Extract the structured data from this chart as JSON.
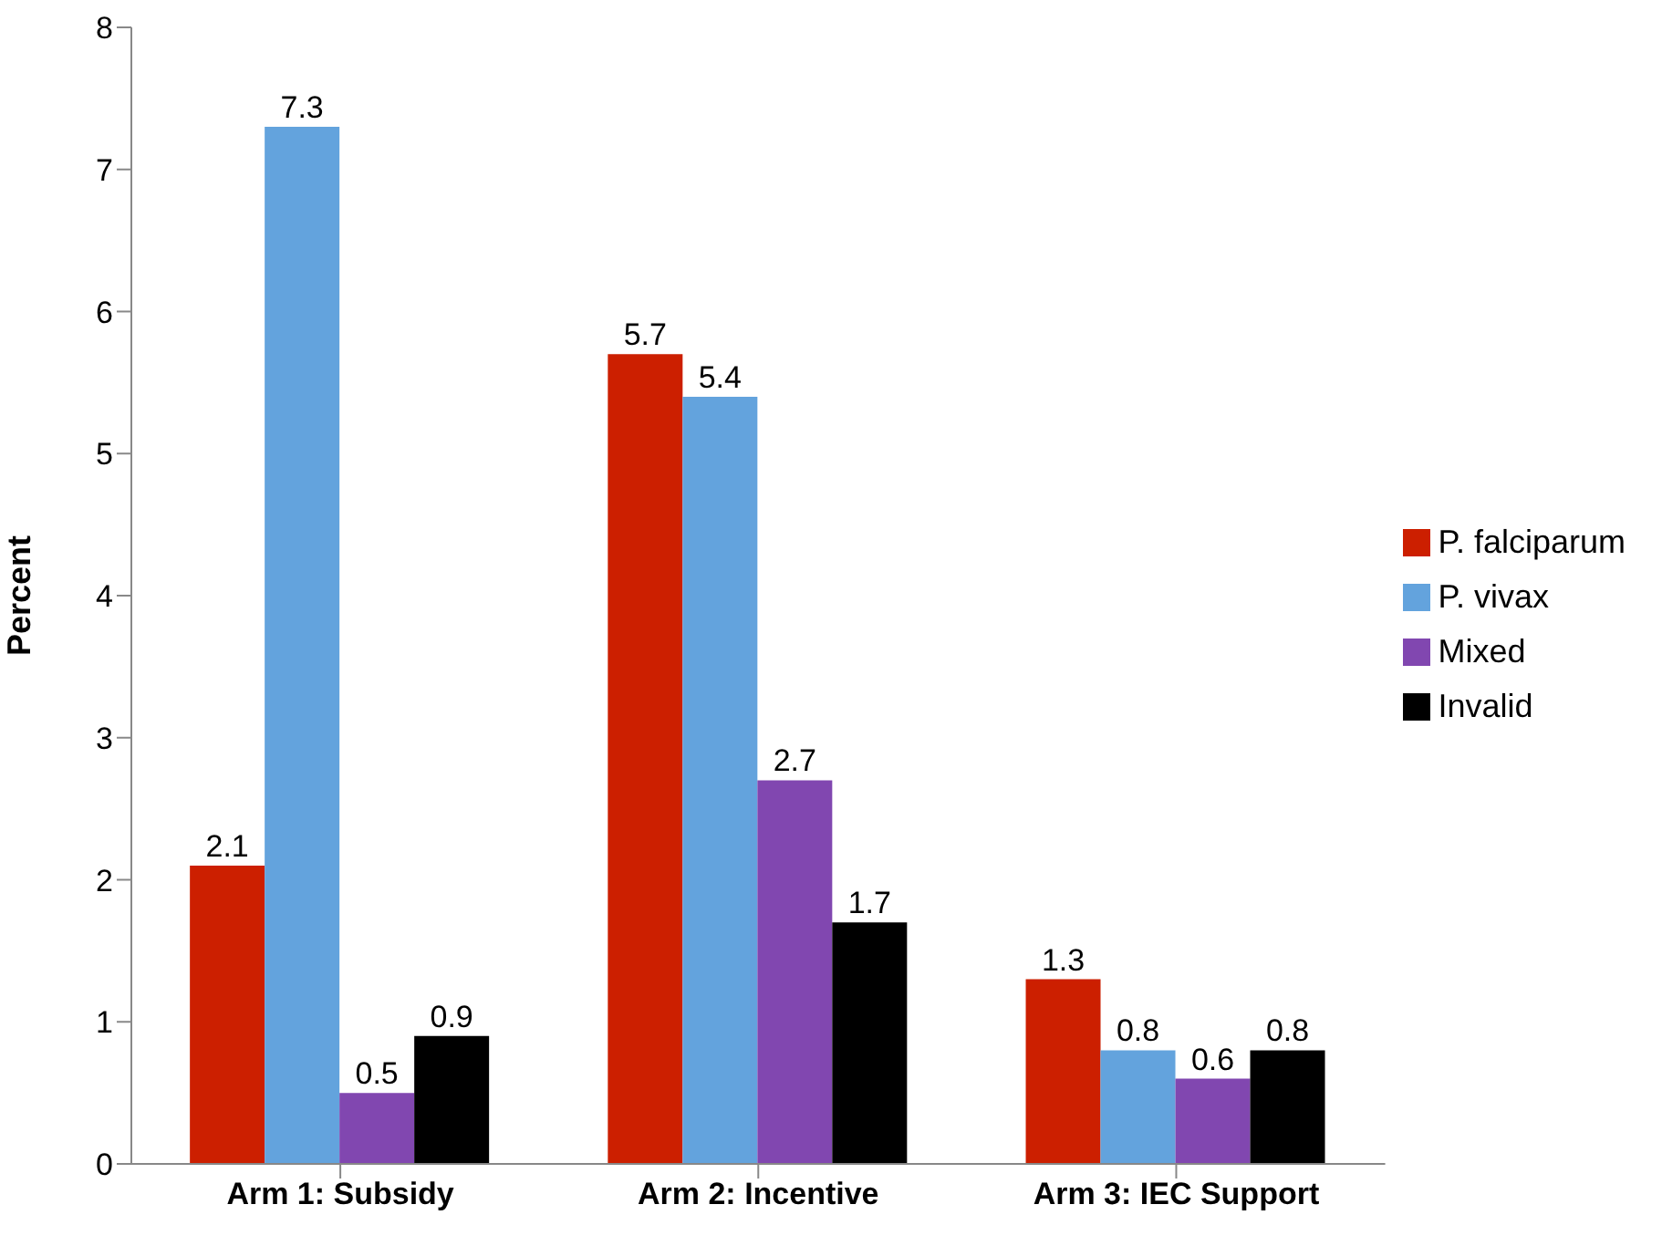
{
  "chart_data": {
    "type": "bar",
    "ylabel": "Percent",
    "categories": [
      "Arm 1: Subsidy",
      "Arm 2: Incentive",
      "Arm 3: IEC Support"
    ],
    "series": [
      {
        "name": "P. falciparum",
        "color": "#cc1f00",
        "values": [
          2.1,
          5.7,
          1.3
        ]
      },
      {
        "name": "P. vivax",
        "color": "#63a3dd",
        "values": [
          7.3,
          5.4,
          0.8
        ]
      },
      {
        "name": "Mixed",
        "color": "#8147b0",
        "values": [
          0.5,
          2.7,
          0.6
        ]
      },
      {
        "name": "Invalid",
        "color": "#000000",
        "values": [
          0.9,
          1.7,
          0.8
        ]
      }
    ],
    "ylim": [
      0,
      8
    ],
    "yticks": [
      0,
      1,
      2,
      3,
      4,
      5,
      6,
      7,
      8
    ],
    "grid": false,
    "legend": "right",
    "data_labels": true
  }
}
